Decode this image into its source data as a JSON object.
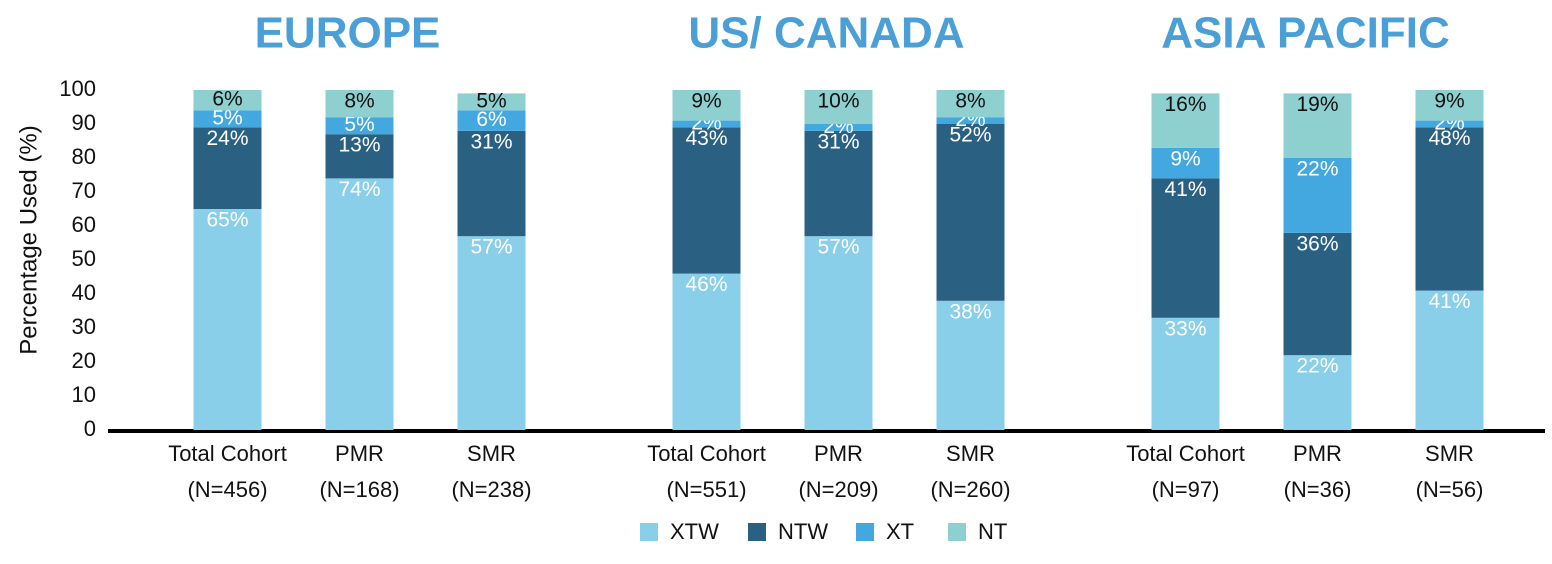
{
  "chart_data": {
    "type": "stacked-bar",
    "groups": [
      "EUROPE",
      "US/ CANADA",
      "ASIA PACIFIC"
    ],
    "title_color": "#4a9fd6",
    "y_label": "Percentage Used (%)",
    "ylim": [
      0,
      100
    ],
    "yticks": [
      0,
      10,
      20,
      30,
      40,
      50,
      60,
      70,
      80,
      90,
      100
    ],
    "categories": [
      [
        "Total Cohort",
        "(N=456)"
      ],
      [
        "PMR",
        "(N=168)"
      ],
      [
        "SMR",
        "(N=238)"
      ],
      [
        "Total Cohort",
        "(N=551)"
      ],
      [
        "PMR",
        "(N=209)"
      ],
      [
        "SMR",
        "(N=260)"
      ],
      [
        "Total Cohort",
        "(N=97)"
      ],
      [
        "PMR",
        "(N=36)"
      ],
      [
        "SMR",
        "(N=56)"
      ]
    ],
    "series": [
      {
        "name": "XTW",
        "color": "#89cfea",
        "label_color": "#ffffff",
        "values": [
          65,
          74,
          57,
          46,
          57,
          38,
          33,
          22,
          41
        ],
        "value_labels": [
          "65%",
          "74%",
          "57%",
          "46%",
          "57%",
          "38%",
          "33%",
          "22%",
          "41%"
        ]
      },
      {
        "name": "NTW",
        "color": "#2a6183",
        "label_color": "#ffffff",
        "values": [
          24,
          13,
          31,
          43,
          31,
          52,
          41,
          36,
          48
        ],
        "value_labels": [
          "24%",
          "13%",
          "31%",
          "43%",
          "31%",
          "52%",
          "41%",
          "36%",
          "48%"
        ]
      },
      {
        "name": "XT",
        "color": "#44a8e0",
        "label_color": "#ffffff",
        "values": [
          5,
          5,
          6,
          2,
          2,
          2,
          9,
          22,
          2
        ],
        "value_labels": [
          "5%",
          "5%",
          "6%",
          "2%",
          "2%",
          "2%",
          "9%",
          "22%",
          "2%"
        ]
      },
      {
        "name": "NT",
        "color": "#8ecfcf",
        "label_color": "#111111",
        "values": [
          6,
          8,
          5,
          9,
          10,
          8,
          16,
          19,
          9
        ],
        "value_labels": [
          "6%",
          "8%",
          "5%",
          "9%",
          "10%",
          "8%",
          "16%",
          "19%",
          "9%"
        ]
      }
    ]
  }
}
